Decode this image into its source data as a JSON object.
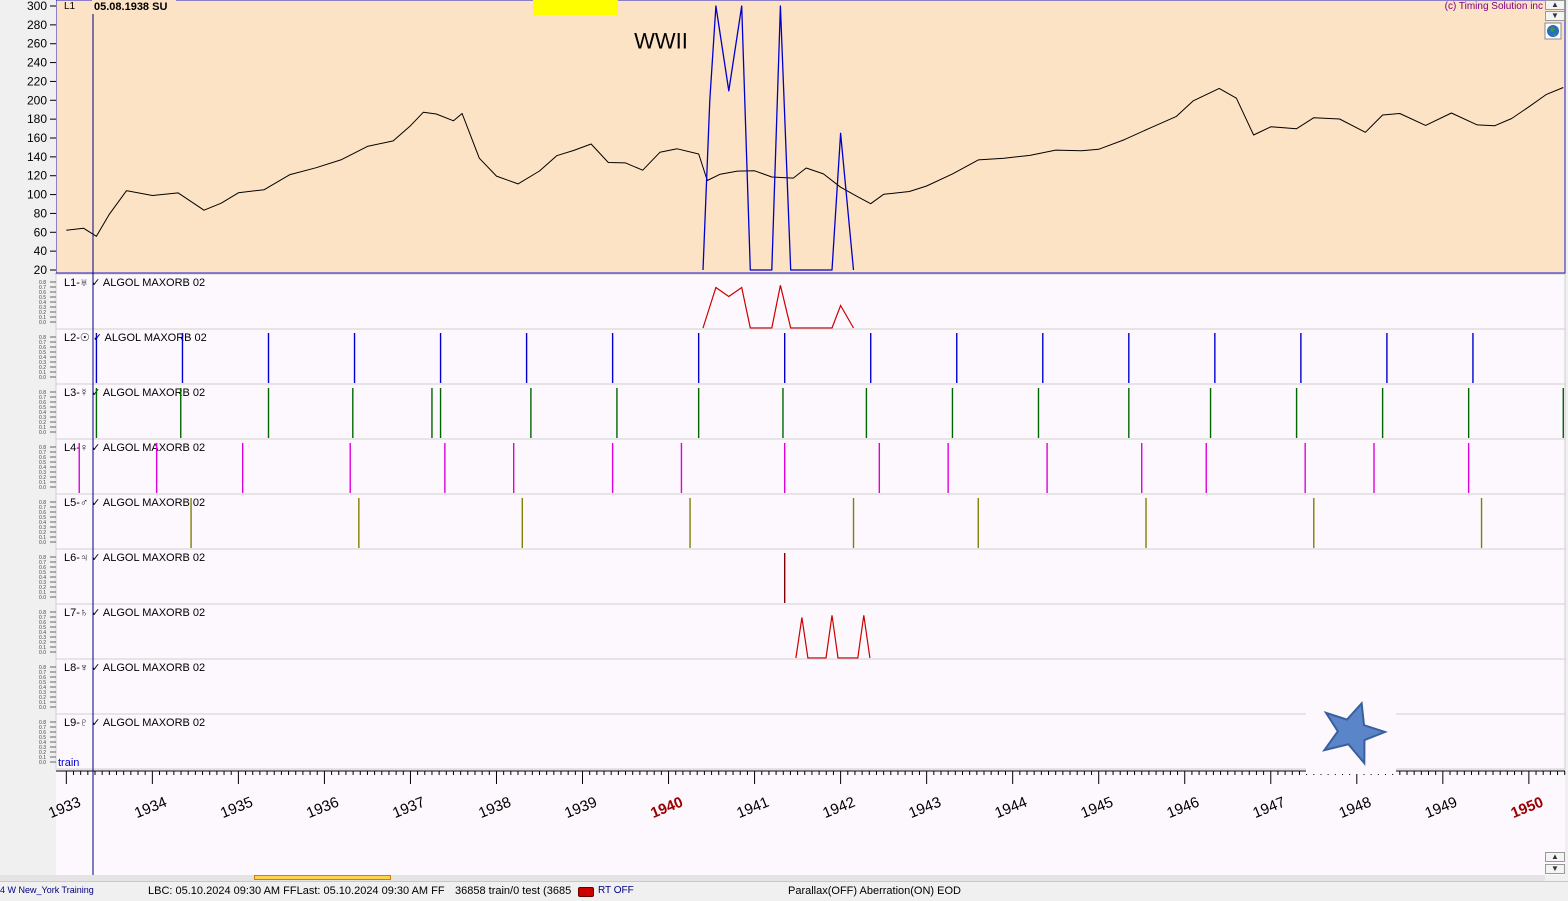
{
  "top_bar": {
    "price_label": "L1",
    "cursor_date": "05.08.1938 SU",
    "copyright": "(c) Timing Solution inc",
    "yellow_box_color": "#ffff00"
  },
  "colors": {
    "price_bg": "#fde3c5",
    "panel_bg": "#fdf8fd",
    "axis_bg": "#fdf8fd",
    "grid_border": "#1a1acc",
    "price_line": "#000000"
  },
  "annotation": {
    "text": "WWII"
  },
  "train_label": "train",
  "chart_data": [
    {
      "type": "line",
      "panel": "price",
      "ylim": [
        20,
        300
      ],
      "yticks": [
        20,
        40,
        60,
        80,
        100,
        120,
        140,
        160,
        180,
        200,
        220,
        240,
        260,
        280,
        300
      ],
      "xlim": [
        1932.88,
        1950.42
      ],
      "series": [
        {
          "color": "#000000",
          "x": [
            1933.0,
            1933.2,
            1933.35,
            1933.5,
            1933.7,
            1934.0,
            1934.3,
            1934.6,
            1934.8,
            1935.0,
            1935.3,
            1935.6,
            1935.9,
            1936.2,
            1936.5,
            1936.8,
            1937.0,
            1937.15,
            1937.3,
            1937.5,
            1937.6,
            1937.8,
            1938.0,
            1938.25,
            1938.5,
            1938.7,
            1938.9,
            1939.1,
            1939.3,
            1939.5,
            1939.7,
            1939.9,
            1940.1,
            1940.35,
            1940.45,
            1940.6,
            1940.8,
            1941.0,
            1941.2,
            1941.45,
            1941.6,
            1941.8,
            1942.0,
            1942.2,
            1942.35,
            1942.5,
            1942.8,
            1943.0,
            1943.3,
            1943.6,
            1943.9,
            1944.2,
            1944.5,
            1944.8,
            1945.0,
            1945.3,
            1945.6,
            1945.9,
            1946.1,
            1946.4,
            1946.6,
            1946.8,
            1947.0,
            1947.3,
            1947.5,
            1947.8,
            1948.1,
            1948.3,
            1948.5,
            1948.8,
            1949.1,
            1949.4,
            1949.6,
            1949.8,
            1950.0,
            1950.2,
            1950.4
          ],
          "y": [
            65,
            62,
            55,
            85,
            105,
            98,
            100,
            90,
            92,
            100,
            105,
            115,
            130,
            140,
            150,
            163,
            175,
            185,
            190,
            180,
            185,
            135,
            115,
            110,
            120,
            140,
            145,
            150,
            135,
            140,
            130,
            145,
            150,
            145,
            115,
            128,
            130,
            125,
            118,
            120,
            125,
            115,
            105,
            100,
            97,
            100,
            108,
            115,
            125,
            135,
            142,
            138,
            142,
            148,
            150,
            155,
            165,
            185,
            200,
            210,
            205,
            170,
            175,
            170,
            180,
            175,
            170,
            183,
            185,
            175,
            180,
            172,
            170,
            180,
            190,
            200,
            212
          ]
        },
        {
          "name": "",
          "color": "#0000cc",
          "x": [
            1940.4,
            1940.48,
            1940.55,
            1940.7,
            1940.85,
            1940.95,
            1941.2,
            1941.3,
            1941.42,
            1941.9,
            1942.0,
            1942.15
          ],
          "y": [
            20,
            200,
            300,
            210,
            300,
            20,
            20,
            300,
            20,
            20,
            165,
            20
          ]
        }
      ],
      "annotation_x": 1939.6,
      "annotation_y": 255
    },
    {
      "type": "line",
      "panel": "L1",
      "label": "L1-♅ ✓ ALGOL MAXORB 02",
      "color": "#cc0000",
      "x": [
        1940.4,
        1940.55,
        1940.7,
        1940.85,
        1940.95,
        1941.2,
        1941.3,
        1941.42,
        1941.9,
        1942.0,
        1942.15
      ],
      "y": [
        0,
        0.9,
        0.7,
        0.9,
        0,
        0,
        0.95,
        0,
        0,
        0.5,
        0
      ]
    },
    {
      "type": "spikes",
      "panel": "L2",
      "label": "L2-☉ ✓ ALGOL MAXORB 02",
      "color": "#0000cc",
      "x": [
        1933.35,
        1934.35,
        1935.35,
        1936.35,
        1937.35,
        1938.35,
        1939.35,
        1940.35,
        1941.35,
        1942.35,
        1943.35,
        1944.35,
        1945.35,
        1946.35,
        1947.35,
        1948.35,
        1949.35
      ]
    },
    {
      "type": "spikes",
      "panel": "L3",
      "label": "L3-☿ ✓ ALGOL MAXORB 02",
      "color": "#006600",
      "x": [
        1933.35,
        1934.33,
        1935.35,
        1936.33,
        1937.25,
        1937.35,
        1938.4,
        1939.4,
        1940.35,
        1941.33,
        1942.3,
        1943.3,
        1944.3,
        1945.35,
        1946.3,
        1947.3,
        1948.3,
        1949.3,
        1950.4
      ]
    },
    {
      "type": "spikes",
      "panel": "L4",
      "label": "L4-♀ ✓ ALGOL MAXORB 02",
      "color": "#dd00dd",
      "x": [
        1933.15,
        1934.05,
        1935.05,
        1936.3,
        1937.4,
        1938.2,
        1939.35,
        1940.15,
        1941.35,
        1942.45,
        1943.25,
        1944.4,
        1945.5,
        1946.25,
        1947.4,
        1948.2,
        1949.3
      ]
    },
    {
      "type": "spikes",
      "panel": "L5",
      "label": "L5-♂ ✓ ALGOL MAXORB 02",
      "color": "#808000",
      "x": [
        1934.45,
        1936.4,
        1938.3,
        1940.25,
        1942.15,
        1943.6,
        1945.55,
        1947.5,
        1949.45
      ]
    },
    {
      "type": "spikes",
      "panel": "L6",
      "label": "L6-♃ ✓ ALGOL MAXORB 02",
      "color": "#800000",
      "x": [
        1941.35
      ]
    },
    {
      "type": "line",
      "panel": "L7",
      "label": "L7-♄ ✓ ALGOL MAXORB 02",
      "color": "#cc0000",
      "x": [
        1941.48,
        1941.55,
        1941.62,
        1941.83,
        1941.9,
        1941.97,
        1942.2,
        1942.27,
        1942.34
      ],
      "y": [
        0,
        0.9,
        0,
        0,
        0.95,
        0,
        0,
        0.95,
        0
      ]
    },
    {
      "type": "spikes",
      "panel": "L8",
      "label": "L8-♆ ✓ ALGOL MAXORB 02",
      "color": "#0000cc",
      "x": []
    },
    {
      "type": "spikes",
      "panel": "L9",
      "label": "L9-♇ ✓ ALGOL MAXORB 02",
      "color": "#0000cc",
      "x": []
    },
    {
      "type": "axis",
      "panel": "time",
      "categories": [
        "1933",
        "1934",
        "1935",
        "1936",
        "1937",
        "1938",
        "1939",
        "1940",
        "1941",
        "1942",
        "1943",
        "1944",
        "1945",
        "1946",
        "1947",
        "1948",
        "1949",
        "1950"
      ],
      "highlight": [
        "1940",
        "1950"
      ],
      "highlight_color": "#990000"
    }
  ],
  "status_bar": {
    "location": "4 W New_York  Training",
    "lbc": "LBC: 05.10.2024  09:30 AM FFLast: 05.10.2024  09:30 AM FF",
    "counts": "36858 train/0 test (3685",
    "rt": "RT OFF",
    "flags": "Parallax(OFF) Aberration(ON) EOD"
  }
}
